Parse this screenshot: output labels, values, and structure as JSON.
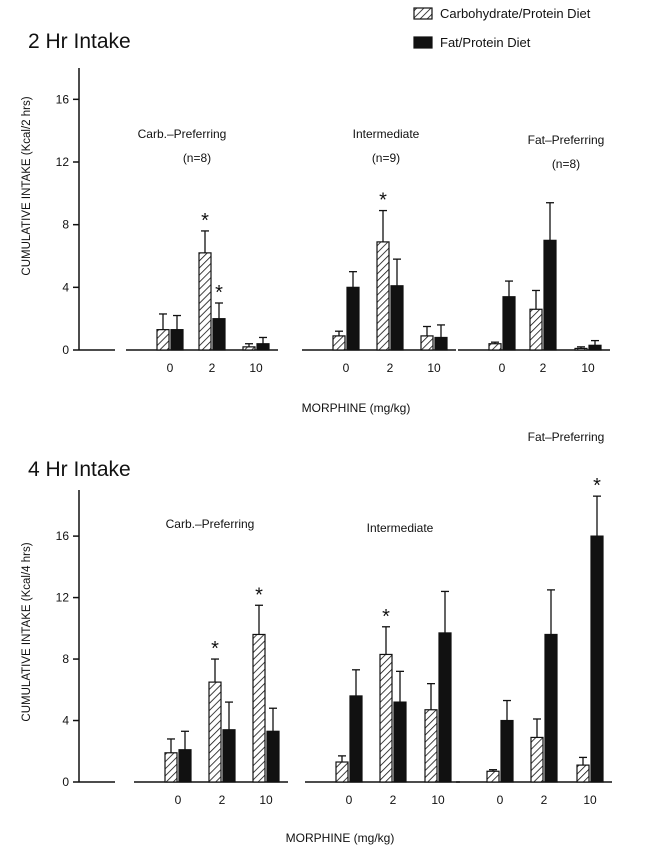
{
  "legend": [
    {
      "label": "Carbohydrate/Protein Diet",
      "pattern": "hatch"
    },
    {
      "label": "Fat/Protein Diet",
      "pattern": "solid"
    }
  ],
  "colors": {
    "ink": "#111111",
    "background": "#ffffff"
  },
  "chart_data": [
    {
      "type": "bar",
      "title": "2 Hr Intake",
      "ylabel": "CUMULATIVE INTAKE (Kcal/2 hrs)",
      "xlabel": "MORPHINE (mg/kg)",
      "ylim": [
        0,
        18
      ],
      "yticks": [
        0,
        4,
        8,
        12,
        16
      ],
      "groups": [
        {
          "name": "Carb.–Preferring",
          "n": "(n=8)",
          "doses": [
            "0",
            "2",
            "10"
          ],
          "series": [
            {
              "name": "Carbohydrate/Protein Diet",
              "values": [
                1.3,
                6.2,
                0.2
              ],
              "errors": [
                1.0,
                1.4,
                0.2
              ],
              "marked": [
                false,
                true,
                false
              ]
            },
            {
              "name": "Fat/Protein Diet",
              "values": [
                1.3,
                2.0,
                0.4
              ],
              "errors": [
                0.9,
                1.0,
                0.4
              ],
              "marked": [
                false,
                true,
                false
              ]
            }
          ]
        },
        {
          "name": "Intermediate",
          "n": "(n=9)",
          "doses": [
            "0",
            "2",
            "10"
          ],
          "series": [
            {
              "name": "Carbohydrate/Protein Diet",
              "values": [
                0.9,
                6.9,
                0.9
              ],
              "errors": [
                0.3,
                2.0,
                0.6
              ],
              "marked": [
                false,
                true,
                false
              ]
            },
            {
              "name": "Fat/Protein Diet",
              "values": [
                4.0,
                4.1,
                0.8
              ],
              "errors": [
                1.0,
                1.7,
                0.8
              ],
              "marked": [
                false,
                false,
                false
              ]
            }
          ]
        },
        {
          "name": "Fat–Preferring",
          "n": "(n=8)",
          "doses": [
            "0",
            "2",
            "10"
          ],
          "series": [
            {
              "name": "Carbohydrate/Protein Diet",
              "values": [
                0.4,
                2.6,
                0.1
              ],
              "errors": [
                0.1,
                1.2,
                0.1
              ],
              "marked": [
                false,
                false,
                false
              ]
            },
            {
              "name": "Fat/Protein Diet",
              "values": [
                3.4,
                7.0,
                0.3
              ],
              "errors": [
                1.0,
                2.4,
                0.3
              ],
              "marked": [
                false,
                false,
                false
              ]
            }
          ]
        }
      ]
    },
    {
      "type": "bar",
      "title": "4 Hr Intake",
      "ylabel": "CUMULATIVE INTAKE (Kcal/4 hrs)",
      "xlabel": "MORPHINE (mg/kg)",
      "ylim": [
        0,
        19
      ],
      "yticks": [
        0,
        4,
        8,
        12,
        16
      ],
      "groups": [
        {
          "name": "Carb.–Preferring",
          "n": "",
          "doses": [
            "0",
            "2",
            "10"
          ],
          "series": [
            {
              "name": "Carbohydrate/Protein Diet",
              "values": [
                1.9,
                6.5,
                9.6
              ],
              "errors": [
                0.9,
                1.5,
                1.9
              ],
              "marked": [
                false,
                true,
                true
              ]
            },
            {
              "name": "Fat/Protein Diet",
              "values": [
                2.1,
                3.4,
                3.3
              ],
              "errors": [
                1.2,
                1.8,
                1.5
              ],
              "marked": [
                false,
                false,
                false
              ]
            }
          ]
        },
        {
          "name": "Intermediate",
          "n": "",
          "doses": [
            "0",
            "2",
            "10"
          ],
          "series": [
            {
              "name": "Carbohydrate/Protein Diet",
              "values": [
                1.3,
                8.3,
                4.7
              ],
              "errors": [
                0.4,
                1.8,
                1.7
              ],
              "marked": [
                false,
                true,
                false
              ]
            },
            {
              "name": "Fat/Protein Diet",
              "values": [
                5.6,
                5.2,
                9.7
              ],
              "errors": [
                1.7,
                2.0,
                2.7
              ],
              "marked": [
                false,
                false,
                false
              ]
            }
          ]
        },
        {
          "name": "Fat–Preferring",
          "n": "",
          "doses": [
            "0",
            "2",
            "10"
          ],
          "series": [
            {
              "name": "Carbohydrate/Protein Diet",
              "values": [
                0.7,
                2.9,
                1.1
              ],
              "errors": [
                0.1,
                1.2,
                0.5
              ],
              "marked": [
                false,
                false,
                false
              ]
            },
            {
              "name": "Fat/Protein Diet",
              "values": [
                4.0,
                9.6,
                16.0
              ],
              "errors": [
                1.3,
                2.9,
                2.6
              ],
              "marked": [
                false,
                false,
                true
              ]
            }
          ]
        }
      ]
    }
  ]
}
